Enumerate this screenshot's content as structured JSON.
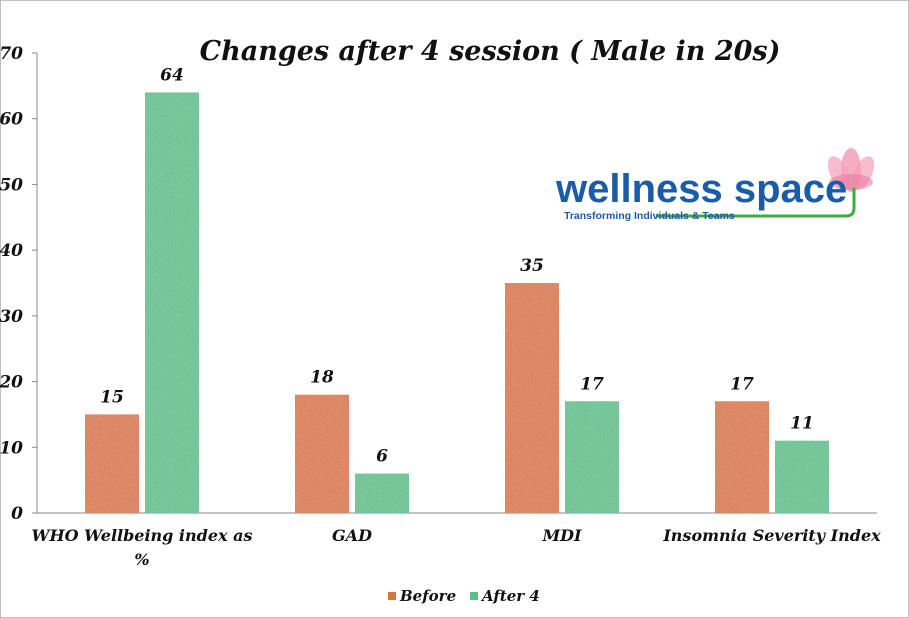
{
  "chart_data": {
    "type": "bar",
    "title": "Changes after 4 session  ( Male in 20s)",
    "categories": [
      "WHO Wellbeing index as %",
      "GAD",
      "MDI",
      "Insomnia Severity Index"
    ],
    "series": [
      {
        "name": "Before",
        "values": [
          15,
          18,
          35,
          17
        ],
        "color": "#d9743f"
      },
      {
        "name": "After 4",
        "values": [
          64,
          6,
          17,
          11
        ],
        "color": "#5cbf8a"
      }
    ],
    "ylim": [
      0,
      70
    ],
    "yticks": [
      0,
      10,
      20,
      30,
      40,
      50,
      60,
      70
    ],
    "grid": false,
    "legend": "bottom",
    "xlabel": "",
    "ylabel": ""
  },
  "logo": {
    "name": "wellness space",
    "tagline": "Transforming Individuals & Teams"
  }
}
